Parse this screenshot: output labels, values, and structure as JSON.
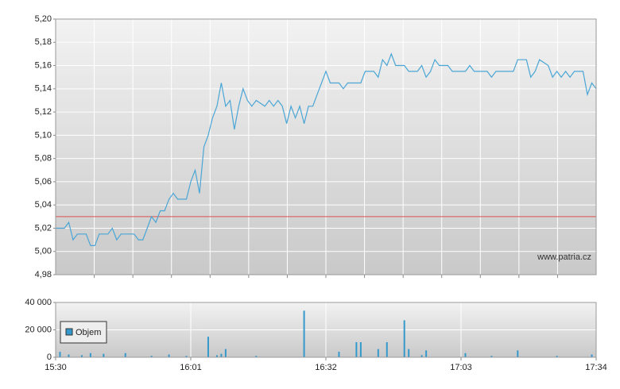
{
  "chart_data": [
    {
      "type": "line",
      "x": [
        "15:30",
        "15:32",
        "15:33",
        "15:34",
        "15:35",
        "15:37",
        "15:38",
        "15:39",
        "15:40",
        "15:42",
        "15:43",
        "15:44",
        "15:45",
        "15:48",
        "15:49",
        "15:50",
        "15:51",
        "15:52",
        "15:53",
        "15:54",
        "15:55",
        "15:56",
        "15:57",
        "15:58",
        "16:00",
        "16:01",
        "16:02",
        "16:03",
        "16:04",
        "16:05",
        "16:06",
        "16:07",
        "16:08",
        "16:09",
        "16:10",
        "16:11",
        "16:12",
        "16:13",
        "16:14",
        "16:15",
        "16:16",
        "16:18",
        "16:19",
        "16:20",
        "16:21",
        "16:22",
        "16:23",
        "16:24",
        "16:25",
        "16:26",
        "16:27",
        "16:28",
        "16:29",
        "16:30",
        "16:31",
        "16:32",
        "16:33",
        "16:35",
        "16:36",
        "16:37",
        "16:40",
        "16:41",
        "16:43",
        "16:44",
        "16:45",
        "16:46",
        "16:47",
        "16:48",
        "16:50",
        "16:51",
        "16:53",
        "16:54",
        "16:55",
        "16:56",
        "16:57",
        "16:58",
        "17:00",
        "17:01",
        "17:04",
        "17:05",
        "17:06",
        "17:09",
        "17:10",
        "17:11",
        "17:15",
        "17:16",
        "17:18",
        "17:19",
        "17:20",
        "17:21",
        "17:23",
        "17:24",
        "17:25",
        "17:26",
        "17:27",
        "17:28",
        "17:29",
        "17:31",
        "17:32",
        "17:33",
        "17:34"
      ],
      "series": [
        {
          "color": "#4aa6d6",
          "values": [
            5.02,
            5.02,
            5.025,
            5.01,
            5.015,
            5.015,
            5.005,
            5.005,
            5.015,
            5.015,
            5.02,
            5.01,
            5.015,
            5.015,
            5.01,
            5.01,
            5.02,
            5.03,
            5.025,
            5.035,
            5.035,
            5.045,
            5.05,
            5.045,
            5.045,
            5.06,
            5.07,
            5.05,
            5.09,
            5.1,
            5.115,
            5.125,
            5.145,
            5.125,
            5.13,
            5.105,
            5.125,
            5.14,
            5.13,
            5.125,
            5.13,
            5.125,
            5.13,
            5.125,
            5.13,
            5.125,
            5.11,
            5.125,
            5.115,
            5.125,
            5.11,
            5.125,
            5.125,
            5.135,
            5.145,
            5.155,
            5.145,
            5.145,
            5.14,
            5.145,
            5.145,
            5.155,
            5.155,
            5.15,
            5.165,
            5.16,
            5.17,
            5.16,
            5.16,
            5.155,
            5.155,
            5.16,
            5.15,
            5.155,
            5.165,
            5.16,
            5.16,
            5.155,
            5.155,
            5.16,
            5.155,
            5.155,
            5.15,
            5.155,
            5.155,
            5.165,
            5.165,
            5.15,
            5.155,
            5.165,
            5.16,
            5.15,
            5.155,
            5.15,
            5.155,
            5.15,
            5.155,
            5.155,
            5.135,
            5.145,
            5.14
          ]
        }
      ],
      "xlim": [
        "15:30",
        "17:34"
      ],
      "ylim": [
        4.98,
        5.2
      ],
      "yticks": [
        {
          "value": 4.98,
          "label": "4,98"
        },
        {
          "value": 5.0,
          "label": "5,00"
        },
        {
          "value": 5.02,
          "label": "5,02"
        },
        {
          "value": 5.04,
          "label": "5,04"
        },
        {
          "value": 5.06,
          "label": "5,06"
        },
        {
          "value": 5.08,
          "label": "5,08"
        },
        {
          "value": 5.1,
          "label": "5,10"
        },
        {
          "value": 5.12,
          "label": "5,12"
        },
        {
          "value": 5.14,
          "label": "5,14"
        },
        {
          "value": 5.16,
          "label": "5,16"
        },
        {
          "value": 5.18,
          "label": "5,18"
        },
        {
          "value": 5.2,
          "label": "5,20"
        }
      ],
      "reference_line": {
        "value": 5.03,
        "color": "#d9534f"
      },
      "watermark": "www.patria.cz",
      "grid": true
    },
    {
      "type": "bar",
      "x": [
        "15:31",
        "15:33",
        "15:36",
        "15:38",
        "15:41",
        "15:46",
        "15:52",
        "15:56",
        "16:00",
        "16:05",
        "16:07",
        "16:08",
        "16:09",
        "16:16",
        "16:27",
        "16:35",
        "16:39",
        "16:40",
        "16:44",
        "16:46",
        "16:50",
        "16:51",
        "16:54",
        "16:55",
        "17:04",
        "17:10",
        "17:16",
        "17:25",
        "17:33"
      ],
      "series": [
        {
          "name": "Objem",
          "color": "#3399cc",
          "values": [
            4000,
            2000,
            1500,
            3000,
            2500,
            3000,
            1000,
            2000,
            1000,
            15000,
            1500,
            2500,
            6000,
            1000,
            34000,
            4000,
            11000,
            11000,
            6000,
            11000,
            27000,
            6000,
            1500,
            5000,
            3000,
            1000,
            5000,
            1000,
            2000
          ]
        }
      ],
      "xlim": [
        "15:30",
        "17:34"
      ],
      "xticks": [
        "15:30",
        "16:01",
        "16:32",
        "17:03",
        "17:34"
      ],
      "ylim": [
        0,
        40000
      ],
      "yticks": [
        0,
        {
          "value": 20000,
          "label": "20 000"
        },
        {
          "value": 40000,
          "label": "40 000"
        }
      ],
      "grid": true
    }
  ]
}
